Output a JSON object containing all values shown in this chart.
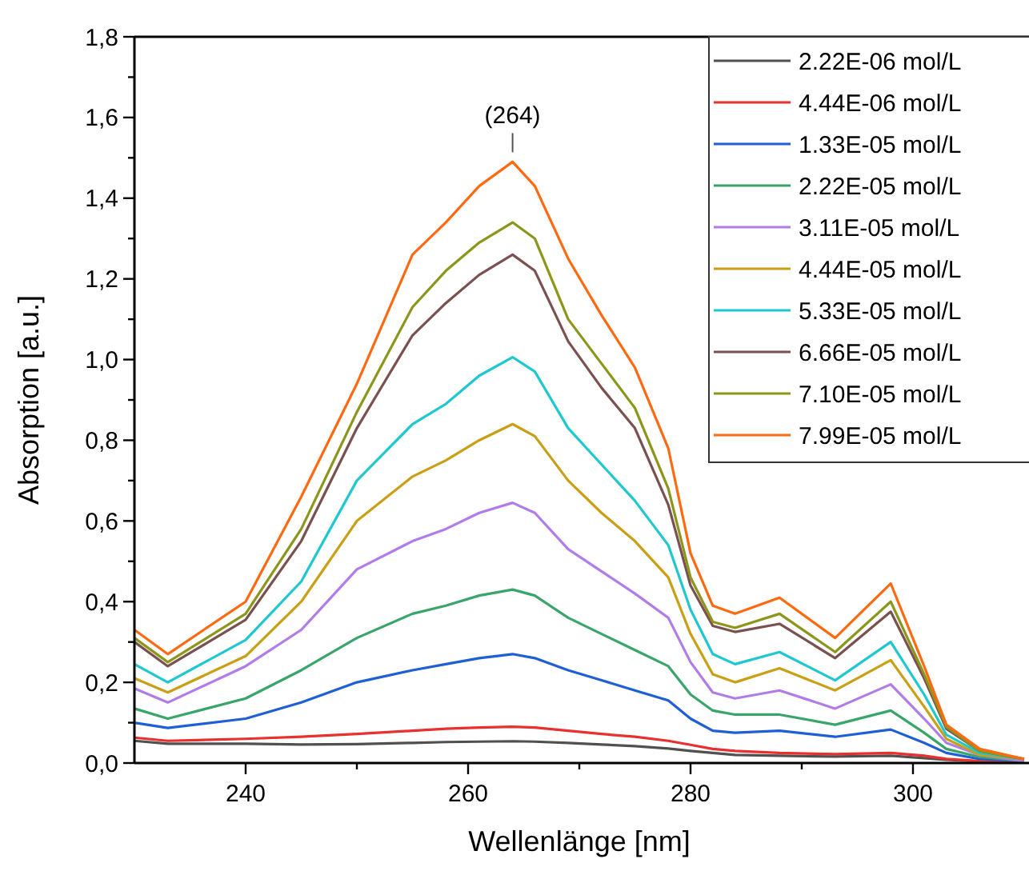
{
  "chart_data": {
    "type": "line",
    "xlabel": "Wellenlänge [nm]",
    "ylabel": "Absorption [a.u.]",
    "x": [
      230,
      233,
      240,
      245,
      250,
      255,
      258,
      261,
      264,
      266,
      269,
      272,
      275,
      278,
      280,
      282,
      284,
      288,
      293,
      298,
      301,
      303,
      306,
      310
    ],
    "xlim": [
      230,
      310
    ],
    "xticks": [
      {
        "value": 240,
        "label": "240"
      },
      {
        "value": 250,
        "label": null
      },
      {
        "value": 260,
        "label": "260"
      },
      {
        "value": 270,
        "label": null
      },
      {
        "value": 280,
        "label": "280"
      },
      {
        "value": 290,
        "label": null
      },
      {
        "value": 300,
        "label": "300"
      }
    ],
    "ylim": [
      0,
      1.8
    ],
    "yticks": [
      {
        "value": 0,
        "label": "0,0"
      },
      {
        "value": 0.1,
        "label": null
      },
      {
        "value": 0.2,
        "label": "0,2"
      },
      {
        "value": 0.3,
        "label": null
      },
      {
        "value": 0.4,
        "label": "0,4"
      },
      {
        "value": 0.5,
        "label": null
      },
      {
        "value": 0.6,
        "label": "0,6"
      },
      {
        "value": 0.7,
        "label": null
      },
      {
        "value": 0.8,
        "label": "0,8"
      },
      {
        "value": 0.9,
        "label": null
      },
      {
        "value": 1.0,
        "label": "1,0"
      },
      {
        "value": 1.1,
        "label": null
      },
      {
        "value": 1.2,
        "label": "1,2"
      },
      {
        "value": 1.3,
        "label": null
      },
      {
        "value": 1.4,
        "label": "1,4"
      },
      {
        "value": 1.5,
        "label": null
      },
      {
        "value": 1.6,
        "label": "1,6"
      },
      {
        "value": 1.7,
        "label": null
      },
      {
        "value": 1.8,
        "label": "1,8"
      }
    ],
    "grid": false,
    "legend": "top right",
    "marker": "none",
    "line_style": "solid",
    "annotations": [
      {
        "text": "(264)",
        "x": 264,
        "y": 1.49
      }
    ],
    "series": [
      {
        "name": "2.22E-06 mol/L",
        "color": "#505050",
        "values": [
          0.055,
          0.048,
          0.048,
          0.046,
          0.047,
          0.05,
          0.052,
          0.053,
          0.054,
          0.053,
          0.05,
          0.046,
          0.042,
          0.036,
          0.03,
          0.025,
          0.02,
          0.018,
          0.016,
          0.018,
          0.012,
          0.008,
          0.004,
          0.002
        ]
      },
      {
        "name": "4.44E-06 mol/L",
        "color": "#e8302e",
        "values": [
          0.063,
          0.055,
          0.06,
          0.065,
          0.072,
          0.08,
          0.085,
          0.088,
          0.09,
          0.088,
          0.08,
          0.072,
          0.065,
          0.055,
          0.045,
          0.035,
          0.03,
          0.025,
          0.022,
          0.025,
          0.018,
          0.01,
          0.005,
          0.003
        ]
      },
      {
        "name": "1.33E-05 mol/L",
        "color": "#1f5fd6",
        "values": [
          0.1,
          0.087,
          0.11,
          0.15,
          0.2,
          0.23,
          0.245,
          0.26,
          0.27,
          0.26,
          0.23,
          0.205,
          0.18,
          0.155,
          0.11,
          0.08,
          0.075,
          0.08,
          0.065,
          0.083,
          0.05,
          0.025,
          0.01,
          0.005
        ]
      },
      {
        "name": "2.22E-05 mol/L",
        "color": "#3aa56a",
        "values": [
          0.135,
          0.11,
          0.16,
          0.23,
          0.31,
          0.37,
          0.39,
          0.415,
          0.43,
          0.415,
          0.36,
          0.32,
          0.28,
          0.24,
          0.17,
          0.13,
          0.12,
          0.12,
          0.095,
          0.13,
          0.075,
          0.035,
          0.015,
          0.005
        ]
      },
      {
        "name": "3.11E-05 mol/L",
        "color": "#b07de8",
        "values": [
          0.185,
          0.15,
          0.24,
          0.33,
          0.48,
          0.55,
          0.58,
          0.62,
          0.645,
          0.62,
          0.53,
          0.475,
          0.42,
          0.36,
          0.25,
          0.175,
          0.16,
          0.18,
          0.135,
          0.195,
          0.11,
          0.05,
          0.02,
          0.005
        ]
      },
      {
        "name": "4.44E-05 mol/L",
        "color": "#c9a015",
        "values": [
          0.21,
          0.175,
          0.265,
          0.4,
          0.6,
          0.71,
          0.75,
          0.8,
          0.84,
          0.81,
          0.7,
          0.62,
          0.55,
          0.46,
          0.32,
          0.22,
          0.2,
          0.235,
          0.18,
          0.255,
          0.14,
          0.06,
          0.02,
          0.01
        ]
      },
      {
        "name": "5.33E-05 mol/L",
        "color": "#1fc8cf",
        "values": [
          0.245,
          0.2,
          0.305,
          0.45,
          0.7,
          0.84,
          0.89,
          0.96,
          1.006,
          0.97,
          0.83,
          0.74,
          0.65,
          0.54,
          0.38,
          0.27,
          0.245,
          0.275,
          0.205,
          0.3,
          0.17,
          0.07,
          0.025,
          0.01
        ]
      },
      {
        "name": "6.66E-05 mol/L",
        "color": "#7a5050",
        "values": [
          0.3,
          0.24,
          0.355,
          0.55,
          0.83,
          1.06,
          1.14,
          1.21,
          1.26,
          1.22,
          1.045,
          0.93,
          0.83,
          0.64,
          0.44,
          0.34,
          0.325,
          0.345,
          0.26,
          0.375,
          0.21,
          0.085,
          0.03,
          0.01
        ]
      },
      {
        "name": "7.10E-05 mol/L",
        "color": "#8c961a",
        "values": [
          0.31,
          0.25,
          0.37,
          0.58,
          0.87,
          1.13,
          1.22,
          1.29,
          1.34,
          1.3,
          1.1,
          0.99,
          0.88,
          0.68,
          0.46,
          0.35,
          0.335,
          0.37,
          0.275,
          0.4,
          0.22,
          0.09,
          0.03,
          0.01
        ]
      },
      {
        "name": "7.99E-05 mol/L",
        "color": "#ff6a10",
        "values": [
          0.33,
          0.27,
          0.4,
          0.66,
          0.94,
          1.26,
          1.34,
          1.43,
          1.49,
          1.43,
          1.25,
          1.11,
          0.98,
          0.78,
          0.52,
          0.39,
          0.37,
          0.41,
          0.31,
          0.445,
          0.24,
          0.095,
          0.035,
          0.01
        ]
      }
    ]
  }
}
